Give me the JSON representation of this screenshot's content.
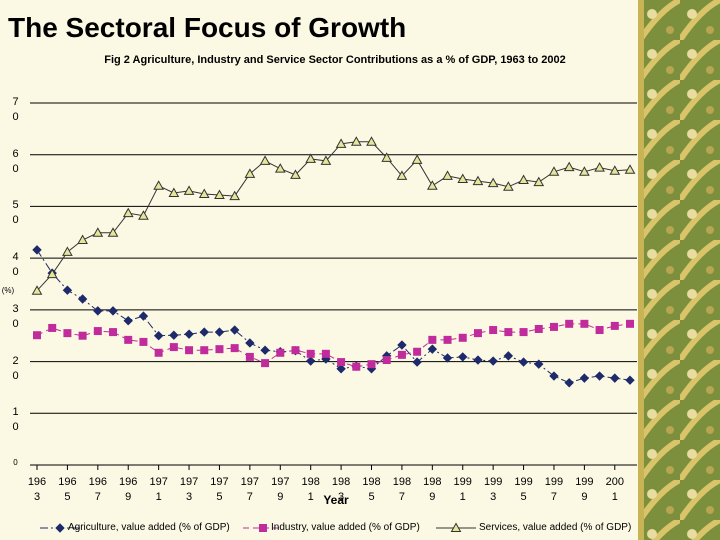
{
  "header": {
    "title": "The Sectoral Focus of Growth"
  },
  "chart_data": {
    "type": "line",
    "title": "Fig 2 Agriculture, Industry and Service Sector Contributions as a % of GDP, 1963 to 2002",
    "x_label": "Year",
    "y_label": "(%)",
    "x": [
      1963,
      1964,
      1965,
      1966,
      1967,
      1968,
      1969,
      1970,
      1971,
      1972,
      1973,
      1974,
      1975,
      1976,
      1977,
      1978,
      1979,
      1980,
      1981,
      1982,
      1983,
      1984,
      1985,
      1986,
      1987,
      1988,
      1989,
      1990,
      1991,
      1992,
      1993,
      1994,
      1995,
      1996,
      1997,
      1998,
      1999,
      2000,
      2001,
      2002
    ],
    "xlim": [
      1963,
      2002
    ],
    "xticks": [
      1963,
      1965,
      1967,
      1969,
      1971,
      1973,
      1975,
      1977,
      1979,
      1981,
      1983,
      1985,
      1987,
      1989,
      1991,
      1993,
      1995,
      1997,
      1999,
      2001
    ],
    "ylim": [
      0,
      70
    ],
    "yticks": [
      0,
      10,
      20,
      30,
      40,
      50,
      60,
      70
    ],
    "grid": true,
    "series": [
      {
        "name": "Agriculture, value added (% of GDP)",
        "color": "#1f2a6b",
        "marker": "diamond",
        "line_style": "dashdot",
        "values": [
          41.6,
          37.1,
          33.8,
          32.1,
          29.8,
          29.8,
          27.9,
          28.8,
          25.0,
          25.1,
          25.3,
          25.7,
          25.7,
          26.1,
          23.6,
          22.2,
          21.9,
          22.1,
          20.1,
          20.5,
          18.6,
          19.1,
          18.6,
          21.1,
          23.2,
          19.9,
          22.4,
          20.7,
          20.9,
          20.3,
          20.1,
          21.1,
          19.9,
          19.5,
          17.2,
          15.9,
          16.8,
          17.2,
          16.8,
          16.4
        ]
      },
      {
        "name": "Industry, value added (% of GDP)",
        "color": "#c02c9c",
        "marker": "square",
        "line_style": "dashed",
        "values": [
          25.1,
          26.5,
          25.5,
          25.0,
          25.9,
          25.7,
          24.2,
          23.8,
          21.7,
          22.8,
          22.2,
          22.2,
          22.4,
          22.6,
          20.9,
          19.7,
          21.7,
          22.2,
          21.5,
          21.5,
          19.9,
          19.0,
          19.5,
          20.3,
          21.3,
          21.9,
          24.2,
          24.2,
          24.6,
          25.5,
          26.1,
          25.7,
          25.7,
          26.3,
          26.7,
          27.3,
          27.3,
          26.1,
          26.9,
          27.3
        ]
      },
      {
        "name": "Services, value added (% of GDP)",
        "color": "#e6e69a",
        "marker": "triangle",
        "line_style": "solid",
        "values": [
          33.7,
          36.9,
          41.2,
          43.5,
          44.9,
          44.9,
          48.7,
          48.2,
          54.0,
          52.6,
          53.0,
          52.4,
          52.2,
          52.0,
          56.3,
          58.8,
          57.3,
          56.1,
          59.2,
          58.8,
          62.1,
          62.5,
          62.5,
          59.4,
          55.9,
          59.0,
          54.0,
          55.9,
          55.3,
          54.9,
          54.5,
          53.8,
          55.1,
          54.7,
          56.7,
          57.6,
          56.7,
          57.5,
          56.9,
          57.1
        ]
      }
    ]
  }
}
